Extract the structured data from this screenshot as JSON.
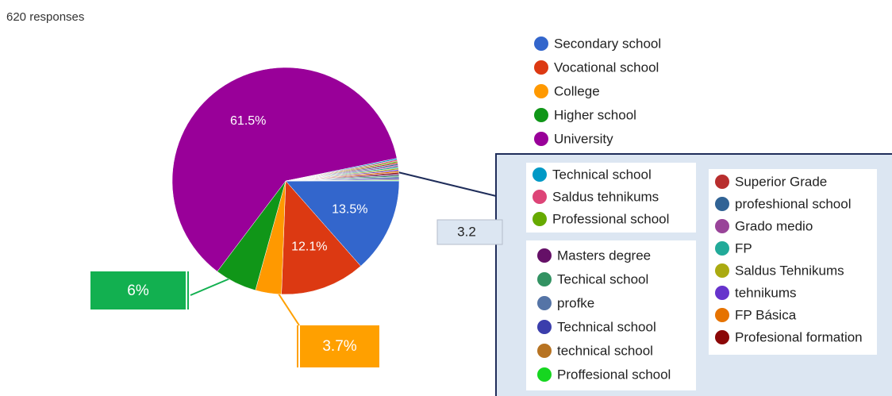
{
  "header": {
    "responses": "620 responses"
  },
  "chart_data": {
    "type": "pie",
    "categories": [
      "Secondary school",
      "Vocational school",
      "College",
      "Higher school",
      "University",
      "Technical school",
      "Saldus tehnikums",
      "Professional school",
      "Superior Grade",
      "profeshional school",
      "Grado medio",
      "FP",
      "Saldus Tehnikums",
      "tehnikums",
      "FP Básica",
      "Profesional formation",
      "Masters degree",
      "Techical school",
      "profke",
      "Technical school",
      "technical school",
      "Proffesional school"
    ],
    "values": [
      13.5,
      12.1,
      3.7,
      6,
      61.5,
      0.2,
      0.2,
      0.2,
      0.2,
      0.2,
      0.2,
      0.2,
      0.2,
      0.2,
      0.2,
      0.2,
      0.2,
      0.2,
      0.2,
      0.2,
      0.1,
      0.1
    ],
    "value_labels": [
      "13.5%",
      "12.1%",
      "3.7%",
      "6%",
      "61.5%",
      null,
      null,
      null,
      null,
      null,
      null,
      null,
      null,
      null,
      null,
      null,
      null,
      null,
      null,
      null,
      null,
      null
    ],
    "colors": [
      "#3366cc",
      "#dc3912",
      "#ff9900",
      "#109618",
      "#990099",
      "#0099c6",
      "#dd4477",
      "#66aa00",
      "#b82e2e",
      "#316395",
      "#994499",
      "#22aa99",
      "#aaaa11",
      "#6633cc",
      "#e67300",
      "#8b0707",
      "#651067",
      "#329262",
      "#5574a6",
      "#3b3eac",
      "#b77322",
      "#16d620"
    ],
    "annotation": "3.2"
  }
}
